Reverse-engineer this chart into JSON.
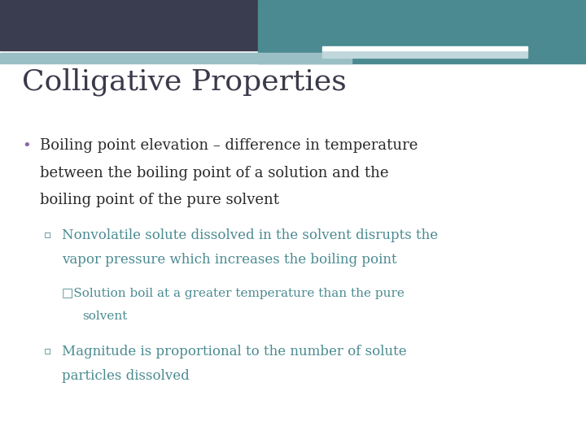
{
  "title": "Colligative Properties",
  "title_color": "#3a3a4a",
  "title_fontsize": 26,
  "background_color": "#ffffff",
  "header_dark_color": "#3a3d4f",
  "header_teal_color": "#4a8a90",
  "header_light_color": "#9abfc5",
  "header_lighter_color": "#c0d8dc",
  "bullet1_text_line1": "Boiling point elevation – difference in temperature",
  "bullet1_text_line2": "between the boiling point of a solution and the",
  "bullet1_text_line3": "boiling point of the pure solvent",
  "bullet1_color": "#2a2a2a",
  "bullet1_dot_color": "#8866aa",
  "sub1_text_line1": "Nonvolatile solute dissolved in the solvent disrupts the",
  "sub1_text_line2": "vapor pressure which increases the boiling point",
  "sub1_color": "#4a8a90",
  "sub2_text_line1": "□Solution boil at a greater temperature than the pure",
  "sub2_text_line2": "solvent",
  "sub2_color": "#4a8a90",
  "sub3_text_line1": "Magnitude is proportional to the number of solute",
  "sub3_text_line2": "particles dissolved",
  "sub3_color": "#4a8a90"
}
